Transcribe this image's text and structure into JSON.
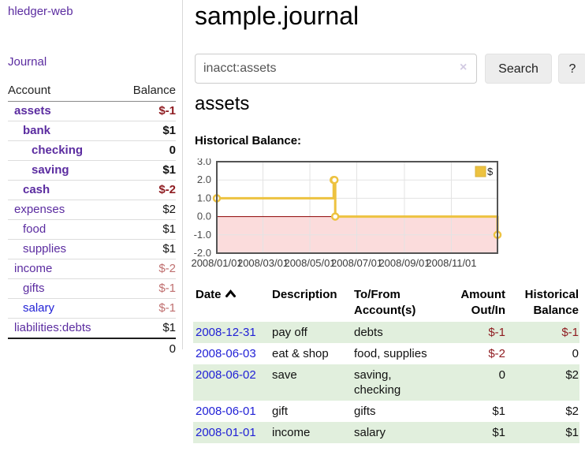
{
  "app": {
    "title": "hledger-web",
    "nav_journal": "Journal"
  },
  "sidebar": {
    "header": {
      "account": "Account",
      "balance": "Balance"
    },
    "accounts": [
      {
        "name": "assets",
        "balance": "$-1",
        "indent": 1,
        "bold": true,
        "neg": "strong",
        "link_color": "purple"
      },
      {
        "name": "bank",
        "balance": "$1",
        "indent": 2,
        "bold": true,
        "neg": "none",
        "link_color": "purple"
      },
      {
        "name": "checking",
        "balance": "0",
        "indent": 3,
        "bold": true,
        "neg": "none",
        "link_color": "purple"
      },
      {
        "name": "saving",
        "balance": "$1",
        "indent": 3,
        "bold": true,
        "neg": "none",
        "link_color": "purple"
      },
      {
        "name": "cash",
        "balance": "$-2",
        "indent": 2,
        "bold": true,
        "neg": "strong",
        "link_color": "purple"
      },
      {
        "name": "expenses",
        "balance": "$2",
        "indent": 1,
        "bold": false,
        "neg": "none",
        "link_color": "purple"
      },
      {
        "name": "food",
        "balance": "$1",
        "indent": 2,
        "bold": false,
        "neg": "none",
        "link_color": "purple"
      },
      {
        "name": "supplies",
        "balance": "$1",
        "indent": 2,
        "bold": false,
        "neg": "none",
        "link_color": "purple"
      },
      {
        "name": "income",
        "balance": "$-2",
        "indent": 1,
        "bold": false,
        "neg": "soft",
        "link_color": "purple"
      },
      {
        "name": "gifts",
        "balance": "$-1",
        "indent": 2,
        "bold": false,
        "neg": "soft",
        "link_color": "purple"
      },
      {
        "name": "salary",
        "balance": "$-1",
        "indent": 2,
        "bold": false,
        "neg": "soft",
        "link_color": "blue"
      },
      {
        "name": "liabilities:debts",
        "balance": "$1",
        "indent": 1,
        "bold": false,
        "neg": "none",
        "link_color": "purple"
      }
    ],
    "total": "0"
  },
  "main": {
    "title": "sample.journal",
    "search": {
      "value": "inacct:assets",
      "clear_icon": "×",
      "button": "Search",
      "help": "?"
    },
    "heading": "assets",
    "chart_label": "Historical Balance:"
  },
  "chart_data": {
    "type": "line",
    "step": true,
    "title": "Historical Balance",
    "series": [
      {
        "name": "$",
        "color": "#edc240",
        "points": [
          [
            "2008-01-01",
            1
          ],
          [
            "2008-06-01",
            2
          ],
          [
            "2008-06-02",
            2
          ],
          [
            "2008-06-03",
            0
          ],
          [
            "2008-12-31",
            -1
          ]
        ]
      }
    ],
    "x_ticks": [
      "2008/01/01",
      "2008/03/01",
      "2008/05/01",
      "2008/07/01",
      "2008/09/01",
      "2008/11/01"
    ],
    "y_ticks": [
      3.0,
      2.0,
      1.0,
      0.0,
      -1.0,
      -2.0
    ],
    "ylim": [
      -2,
      3
    ],
    "x_range": [
      "2008-01-01",
      "2008-12-31"
    ],
    "grid": true,
    "legend_position": "top-right",
    "legend": {
      "label": "$",
      "swatch": "#edc240"
    },
    "negative_fill": "#fbdcdc",
    "zero_line_color": "#8b0000"
  },
  "register_table": {
    "headers": [
      "Date",
      "Description",
      "To/From Account(s)",
      "Amount Out/In",
      "Historical Balance"
    ],
    "rows": [
      {
        "date": "2008-12-31",
        "description": "pay off",
        "accounts": "debts",
        "amount": "$-1",
        "amount_negative": true,
        "balance": "$-1",
        "balance_negative": true
      },
      {
        "date": "2008-06-03",
        "description": "eat & shop",
        "accounts": "food, supplies",
        "amount": "$-2",
        "amount_negative": true,
        "balance": "0",
        "balance_negative": false
      },
      {
        "date": "2008-06-02",
        "description": "save",
        "accounts": "saving, checking",
        "amount": "0",
        "amount_negative": false,
        "balance": "$2",
        "balance_negative": false
      },
      {
        "date": "2008-06-01",
        "description": "gift",
        "accounts": "gifts",
        "amount": "$1",
        "amount_negative": false,
        "balance": "$2",
        "balance_negative": false
      },
      {
        "date": "2008-01-01",
        "description": "income",
        "accounts": "salary",
        "amount": "$1",
        "amount_negative": false,
        "balance": "$1",
        "balance_negative": false
      }
    ]
  }
}
